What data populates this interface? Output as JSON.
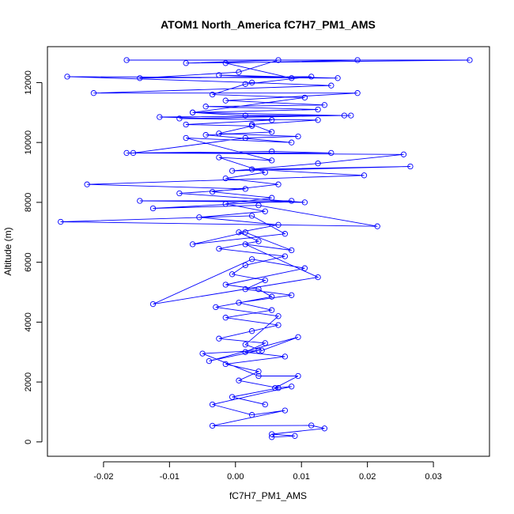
{
  "chart_data": {
    "type": "line",
    "title": "ATOM1 North_America fC7H7_PM1_AMS",
    "xlabel": "fC7H7_PM1_AMS",
    "ylabel": "Altitude (m)",
    "xlim": [
      -0.0285,
      0.0385
    ],
    "ylim": [
      -480,
      13200
    ],
    "x_ticks": [
      -0.02,
      -0.01,
      0.0,
      0.01,
      0.02,
      0.03
    ],
    "x_tick_labels": [
      "-0.02",
      "-0.01",
      "0.00",
      "0.01",
      "0.02",
      "0.03"
    ],
    "y_ticks": [
      0,
      2000,
      4000,
      6000,
      8000,
      10000,
      12000
    ],
    "y_tick_labels": [
      "0",
      "2000",
      "4000",
      "6000",
      "8000",
      "10000",
      "12000"
    ],
    "grid": false,
    "markers": "open-circle",
    "color": "#0000ff",
    "series": [
      {
        "values": [
          [
            0.0055,
            160
          ],
          [
            0.009,
            200
          ],
          [
            0.0055,
            260
          ],
          [
            0.0135,
            450
          ],
          [
            0.0115,
            550
          ],
          [
            -0.0035,
            540
          ],
          [
            0.0075,
            1050
          ],
          [
            0.0025,
            900
          ],
          [
            -0.0035,
            1250
          ],
          [
            0.0085,
            1850
          ],
          [
            0.006,
            1800
          ],
          [
            0.0095,
            2200
          ],
          [
            0.0035,
            2200
          ],
          [
            -0.005,
            2950
          ],
          [
            0.0035,
            3050
          ],
          [
            -0.004,
            2700
          ],
          [
            0.0095,
            3500
          ],
          [
            0.004,
            3050
          ],
          [
            0.0015,
            3250
          ],
          [
            0.0065,
            4200
          ],
          [
            -0.003,
            4500
          ],
          [
            0.0055,
            4850
          ],
          [
            0.0035,
            5100
          ],
          [
            -0.0015,
            5250
          ],
          [
            0.0105,
            5800
          ],
          [
            0.0025,
            6100
          ],
          [
            -0.0125,
            4600
          ],
          [
            0.0125,
            5500
          ],
          [
            0.0015,
            6600
          ],
          [
            0.0085,
            6400
          ],
          [
            0.0015,
            7000
          ],
          [
            -0.0065,
            6600
          ],
          [
            0.0075,
            6950
          ],
          [
            0.0025,
            7550
          ],
          [
            -0.0265,
            7350
          ],
          [
            0.0215,
            7200
          ],
          [
            0.0035,
            7900
          ],
          [
            -0.0125,
            7800
          ],
          [
            0.0085,
            8050
          ],
          [
            -0.0145,
            8050
          ],
          [
            0.0105,
            8000
          ],
          [
            -0.0085,
            8300
          ],
          [
            0.0015,
            8450
          ],
          [
            -0.0225,
            8600
          ],
          [
            0.0195,
            8900
          ],
          [
            0.0025,
            9100
          ],
          [
            0.0265,
            9200
          ],
          [
            -0.0005,
            9050
          ],
          [
            0.0125,
            9300
          ],
          [
            0.0255,
            9600
          ],
          [
            -0.0165,
            9650
          ],
          [
            0.0145,
            9650
          ],
          [
            0.0055,
            9700
          ],
          [
            -0.0155,
            9650
          ],
          [
            0.0015,
            10150
          ],
          [
            0.0095,
            10200
          ],
          [
            -0.0025,
            10300
          ],
          [
            0.0025,
            10550
          ],
          [
            -0.0075,
            10600
          ],
          [
            0.0055,
            10750
          ],
          [
            -0.0115,
            10850
          ],
          [
            0.0175,
            10900
          ],
          [
            0.0015,
            10900
          ],
          [
            -0.0065,
            11000
          ],
          [
            0.0125,
            11100
          ],
          [
            -0.0045,
            11200
          ],
          [
            0.0135,
            11250
          ],
          [
            -0.0015,
            11400
          ],
          [
            0.0185,
            11650
          ],
          [
            -0.0215,
            11650
          ],
          [
            0.0145,
            11900
          ],
          [
            0.0025,
            12000
          ],
          [
            -0.0255,
            12200
          ],
          [
            0.0155,
            12150
          ],
          [
            -0.0025,
            12250
          ],
          [
            0.0085,
            12150
          ],
          [
            -0.0015,
            12650
          ],
          [
            0.0185,
            12750
          ],
          [
            -0.0165,
            12750
          ],
          [
            0.0355,
            12750
          ],
          [
            -0.0075,
            12650
          ],
          [
            0.0065,
            12750
          ],
          [
            0.0005,
            12350
          ],
          [
            -0.0145,
            12150
          ],
          [
            0.0115,
            12200
          ],
          [
            0.0015,
            11950
          ],
          [
            -0.0035,
            11600
          ],
          [
            0.0105,
            11500
          ],
          [
            -0.0065,
            11000
          ],
          [
            0.0165,
            10900
          ],
          [
            -0.0085,
            10800
          ],
          [
            0.0125,
            10750
          ],
          [
            0.0025,
            10600
          ],
          [
            0.0055,
            10350
          ],
          [
            -0.0045,
            10250
          ],
          [
            0.0085,
            10000
          ],
          [
            -0.0075,
            10150
          ],
          [
            0.0055,
            9400
          ],
          [
            -0.0025,
            9500
          ],
          [
            0.0045,
            9000
          ],
          [
            -0.0015,
            8800
          ],
          [
            0.0065,
            8600
          ],
          [
            -0.0035,
            8350
          ],
          [
            0.0055,
            8150
          ],
          [
            -0.0015,
            7950
          ],
          [
            0.0045,
            7700
          ],
          [
            -0.0055,
            7500
          ],
          [
            0.0065,
            7250
          ],
          [
            0.0005,
            7000
          ],
          [
            0.0035,
            6700
          ],
          [
            -0.0025,
            6450
          ],
          [
            0.0075,
            6200
          ],
          [
            0.0015,
            5900
          ],
          [
            -0.0005,
            5600
          ],
          [
            0.0045,
            5400
          ],
          [
            0.0015,
            5100
          ],
          [
            0.0085,
            4900
          ],
          [
            0.0005,
            4650
          ],
          [
            0.0055,
            4400
          ],
          [
            -0.0015,
            4150
          ],
          [
            0.0065,
            3900
          ],
          [
            0.0025,
            3700
          ],
          [
            -0.0025,
            3450
          ],
          [
            0.0045,
            3300
          ],
          [
            0.0015,
            3000
          ],
          [
            0.0075,
            2850
          ],
          [
            -0.0015,
            2600
          ],
          [
            0.0035,
            2350
          ],
          [
            0.0005,
            2050
          ],
          [
            0.0065,
            1800
          ],
          [
            -0.0005,
            1500
          ],
          [
            0.0045,
            1250
          ]
        ]
      }
    ]
  }
}
